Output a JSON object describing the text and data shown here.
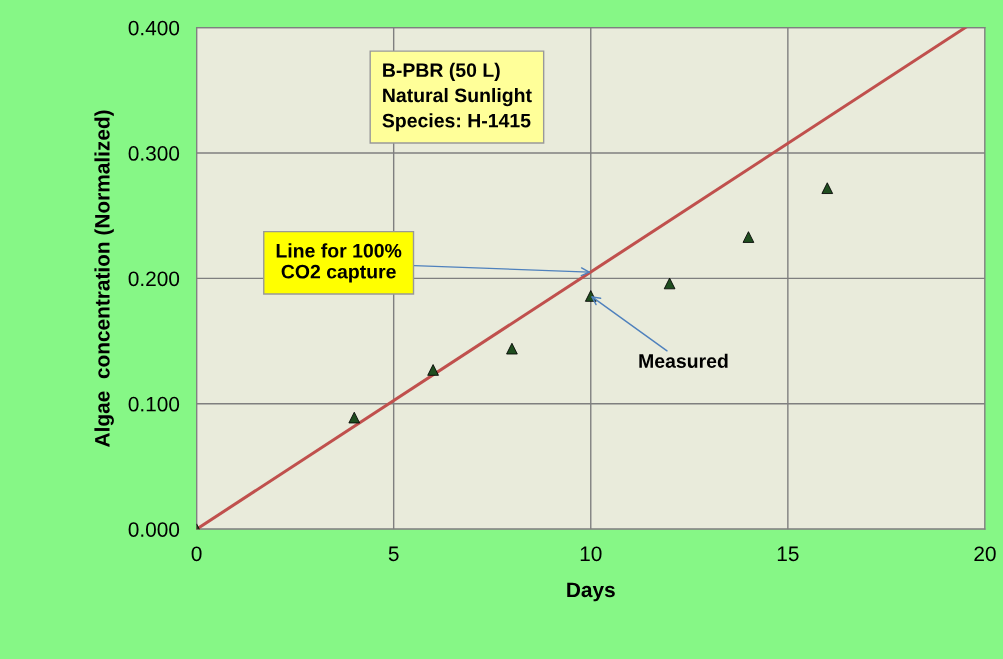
{
  "chart_data": {
    "type": "scatter",
    "xlabel": "Days",
    "ylabel": "Algae  concentration (Normalized)",
    "xlim": [
      0,
      20
    ],
    "xticks": [
      0,
      5,
      10,
      15,
      20
    ],
    "ylim": [
      0,
      0.4
    ],
    "yticks": [
      {
        "value": 0,
        "label": "0.000"
      },
      {
        "value": 0.1,
        "label": "0.100"
      },
      {
        "value": 0.2,
        "label": "0.200"
      },
      {
        "value": 0.3,
        "label": "0.300"
      },
      {
        "value": 0.4,
        "label": "0.400"
      }
    ],
    "grid": true,
    "series": [
      {
        "color": "#1f4d1f",
        "marker": "triangle",
        "x": [
          0,
          4,
          6,
          8,
          10,
          12,
          14,
          16
        ],
        "values": [
          0.0,
          0.089,
          0.127,
          0.144,
          0.186,
          0.196,
          0.233,
          0.272
        ]
      },
      {
        "type": "line",
        "color": "#c0504d",
        "marker": "none",
        "line_style": "solid",
        "x": [
          0,
          19.5
        ],
        "values": [
          0,
          0.4
        ]
      }
    ],
    "annotations": [
      "B-PBR (50 L)\nNatural Sunlight\nSpecies: H-1415",
      {
        "text": "Line for 100%\n CO2 capture",
        "x": 10,
        "y": 0.205
      },
      {
        "text": "Measured",
        "x": 10,
        "y": 0.186
      }
    ]
  }
}
